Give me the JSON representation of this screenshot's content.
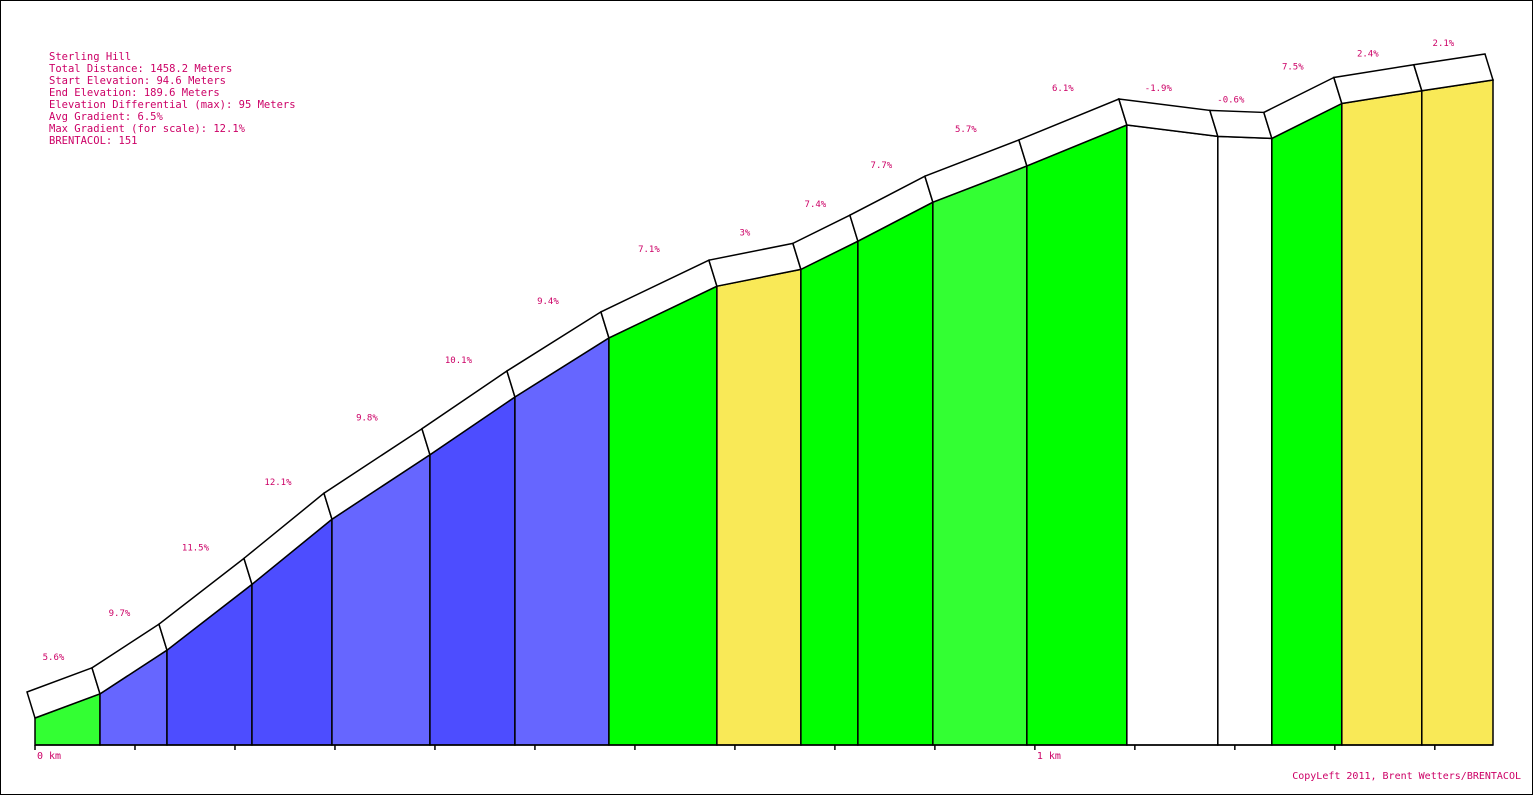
{
  "info": {
    "name": "Sterling Hill",
    "total_distance": "Total Distance: 1458.2 Meters",
    "start_elevation": "Start Elevation: 94.6 Meters",
    "end_elevation": "End Elevation: 189.6 Meters",
    "elevation_differential": "Elevation Differential (max): 95 Meters",
    "avg_gradient": "Avg Gradient: 6.5%",
    "max_gradient": "Max Gradient (for scale): 12.1%",
    "brentacol": "BRENTACOL: 151"
  },
  "copyleft": "CopyLeft 2011, Brent Wetters/BRENTACOL",
  "colors": {
    "white": "#ffffff",
    "yellow": "#f9e957",
    "bright_green": "#00ff00",
    "light_green": "#33ff33",
    "light_blue": "#6666ff",
    "blue": "#4d4dff",
    "label": "#cc0066",
    "outline": "#000000"
  },
  "chart_data": {
    "type": "area",
    "title": "Sterling Hill",
    "x_unit": "km",
    "x_range": [
      0,
      1.4582
    ],
    "y_range": [
      94.6,
      189.6
    ],
    "x_tick_labels": [
      "0 km",
      "1 km"
    ],
    "segments": [
      {
        "start_km": 0.0,
        "end_km": 0.065,
        "start_elev": 94.6,
        "end_elev": 98.2,
        "gradient_label": "5.6%",
        "color": "#33ff33"
      },
      {
        "start_km": 0.065,
        "end_km": 0.132,
        "start_elev": 98.2,
        "end_elev": 104.7,
        "gradient_label": "9.7%",
        "color": "#6666ff"
      },
      {
        "start_km": 0.132,
        "end_km": 0.217,
        "start_elev": 104.7,
        "end_elev": 114.5,
        "gradient_label": "11.5%",
        "color": "#4d4dff"
      },
      {
        "start_km": 0.217,
        "end_km": 0.297,
        "start_elev": 114.5,
        "end_elev": 124.2,
        "gradient_label": "12.1%",
        "color": "#4d4dff"
      },
      {
        "start_km": 0.297,
        "end_km": 0.395,
        "start_elev": 124.2,
        "end_elev": 133.8,
        "gradient_label": "9.8%",
        "color": "#6666ff"
      },
      {
        "start_km": 0.395,
        "end_km": 0.48,
        "start_elev": 133.8,
        "end_elev": 142.4,
        "gradient_label": "10.1%",
        "color": "#4d4dff"
      },
      {
        "start_km": 0.48,
        "end_km": 0.574,
        "start_elev": 142.4,
        "end_elev": 151.2,
        "gradient_label": "9.4%",
        "color": "#6666ff"
      },
      {
        "start_km": 0.574,
        "end_km": 0.682,
        "start_elev": 151.2,
        "end_elev": 158.9,
        "gradient_label": "7.1%",
        "color": "#00ff00"
      },
      {
        "start_km": 0.682,
        "end_km": 0.766,
        "start_elev": 158.9,
        "end_elev": 161.4,
        "gradient_label": "3%",
        "color": "#f9e957"
      },
      {
        "start_km": 0.766,
        "end_km": 0.823,
        "start_elev": 161.4,
        "end_elev": 165.6,
        "gradient_label": "7.4%",
        "color": "#00ff00"
      },
      {
        "start_km": 0.823,
        "end_km": 0.898,
        "start_elev": 165.6,
        "end_elev": 171.4,
        "gradient_label": "7.7%",
        "color": "#00ff00"
      },
      {
        "start_km": 0.898,
        "end_km": 0.992,
        "start_elev": 171.4,
        "end_elev": 176.8,
        "gradient_label": "5.7%",
        "color": "#33ff33"
      },
      {
        "start_km": 0.992,
        "end_km": 1.092,
        "start_elev": 176.8,
        "end_elev": 182.9,
        "gradient_label": "6.1%",
        "color": "#00ff00"
      },
      {
        "start_km": 1.092,
        "end_km": 1.183,
        "start_elev": 182.9,
        "end_elev": 181.2,
        "gradient_label": "-1.9%",
        "color": "#ffffff"
      },
      {
        "start_km": 1.183,
        "end_km": 1.237,
        "start_elev": 181.2,
        "end_elev": 180.9,
        "gradient_label": "-0.6%",
        "color": "#ffffff"
      },
      {
        "start_km": 1.237,
        "end_km": 1.307,
        "start_elev": 180.9,
        "end_elev": 186.1,
        "gradient_label": "7.5%",
        "color": "#00ff00"
      },
      {
        "start_km": 1.307,
        "end_km": 1.387,
        "start_elev": 186.1,
        "end_elev": 188.0,
        "gradient_label": "2.4%",
        "color": "#f9e957"
      },
      {
        "start_km": 1.387,
        "end_km": 1.4582,
        "start_elev": 188.0,
        "end_elev": 189.6,
        "gradient_label": "2.1%",
        "color": "#f9e957"
      }
    ]
  }
}
